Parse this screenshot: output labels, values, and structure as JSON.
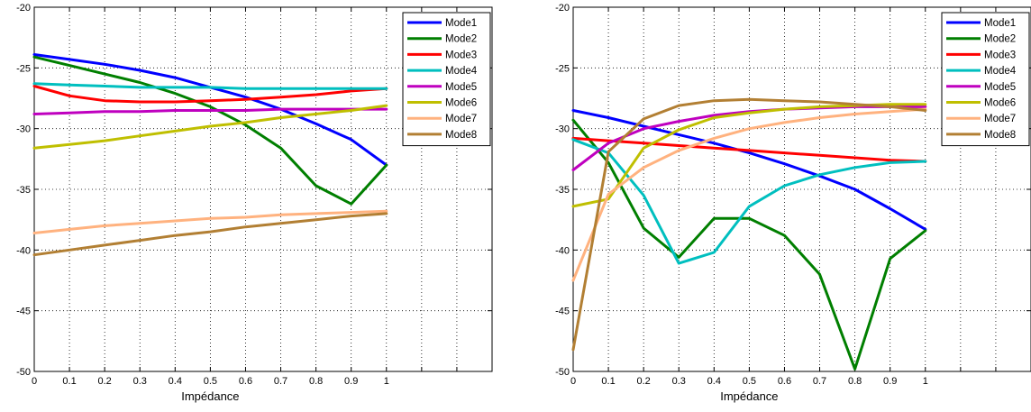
{
  "chart_data": [
    {
      "type": "line",
      "xlabel": "Impédance",
      "ylabel": "",
      "xlim": [
        0,
        1.3
      ],
      "ylim": [
        -50,
        -20
      ],
      "xticks": [
        "0",
        "0.1",
        "0.2",
        "0.3",
        "0.4",
        "0.5",
        "0.6",
        "0.7",
        "0.8",
        "0.9",
        "1"
      ],
      "yticks": [
        "-20",
        "-25",
        "-30",
        "-35",
        "-40",
        "-45",
        "-50"
      ],
      "grid": true,
      "legend_position": "top-right",
      "x": [
        0,
        0.1,
        0.2,
        0.3,
        0.4,
        0.5,
        0.6,
        0.7,
        0.8,
        0.9,
        1.0
      ],
      "series": [
        {
          "name": "Mode1",
          "color": "#0000ff",
          "values": [
            -23.9,
            -24.3,
            -24.7,
            -25.2,
            -25.8,
            -26.6,
            -27.4,
            -28.4,
            -29.6,
            -30.9,
            -33.0
          ]
        },
        {
          "name": "Mode2",
          "color": "#007f00",
          "values": [
            -24.1,
            -24.8,
            -25.5,
            -26.2,
            -27.1,
            -28.2,
            -29.7,
            -31.6,
            -34.7,
            -36.2,
            -33.0
          ]
        },
        {
          "name": "Mode3",
          "color": "#ff0000",
          "values": [
            -26.5,
            -27.3,
            -27.7,
            -27.8,
            -27.8,
            -27.7,
            -27.6,
            -27.4,
            -27.2,
            -26.9,
            -26.7
          ]
        },
        {
          "name": "Mode4",
          "color": "#00bfbf",
          "values": [
            -26.3,
            -26.4,
            -26.5,
            -26.6,
            -26.6,
            -26.6,
            -26.7,
            -26.7,
            -26.7,
            -26.7,
            -26.7
          ]
        },
        {
          "name": "Mode5",
          "color": "#bf00bf",
          "values": [
            -28.8,
            -28.7,
            -28.6,
            -28.6,
            -28.5,
            -28.5,
            -28.5,
            -28.4,
            -28.4,
            -28.4,
            -28.4
          ]
        },
        {
          "name": "Mode6",
          "color": "#bfbf00",
          "values": [
            -31.6,
            -31.3,
            -31.0,
            -30.6,
            -30.2,
            -29.8,
            -29.5,
            -29.1,
            -28.8,
            -28.5,
            -28.1
          ]
        },
        {
          "name": "Mode7",
          "color": "#ffb27f",
          "values": [
            -38.6,
            -38.3,
            -38.0,
            -37.8,
            -37.6,
            -37.4,
            -37.3,
            -37.1,
            -37.0,
            -36.9,
            -36.8
          ]
        },
        {
          "name": "Mode8",
          "color": "#b27f33",
          "values": [
            -40.4,
            -40.0,
            -39.6,
            -39.2,
            -38.8,
            -38.5,
            -38.1,
            -37.8,
            -37.5,
            -37.2,
            -37.0
          ]
        }
      ]
    },
    {
      "type": "line",
      "xlabel": "Impédance",
      "ylabel": "",
      "xlim": [
        0,
        1.3
      ],
      "ylim": [
        -50,
        -20
      ],
      "xticks": [
        "0",
        "0.1",
        "0.2",
        "0.3",
        "0.4",
        "0.5",
        "0.6",
        "0.7",
        "0.8",
        "0.9",
        "1"
      ],
      "yticks": [
        "-20",
        "-25",
        "-30",
        "-35",
        "-40",
        "-45",
        "-50"
      ],
      "grid": true,
      "legend_position": "top-right",
      "x": [
        0,
        0.1,
        0.2,
        0.3,
        0.4,
        0.5,
        0.6,
        0.7,
        0.8,
        0.9,
        1.0
      ],
      "series": [
        {
          "name": "Mode1",
          "color": "#0000ff",
          "values": [
            -28.5,
            -29.1,
            -29.8,
            -30.5,
            -31.2,
            -32.0,
            -32.9,
            -33.9,
            -35.0,
            -36.6,
            -38.3
          ]
        },
        {
          "name": "Mode2",
          "color": "#007f00",
          "values": [
            -29.3,
            -32.8,
            -38.2,
            -40.6,
            -37.4,
            -37.4,
            -38.8,
            -42.0,
            -49.8,
            -40.7,
            -38.4
          ]
        },
        {
          "name": "Mode3",
          "color": "#ff0000",
          "values": [
            -30.8,
            -31.0,
            -31.2,
            -31.4,
            -31.6,
            -31.8,
            -32.0,
            -32.2,
            -32.4,
            -32.6,
            -32.7
          ]
        },
        {
          "name": "Mode4",
          "color": "#00bfbf",
          "values": [
            -30.9,
            -32.0,
            -35.5,
            -41.1,
            -40.2,
            -36.4,
            -34.7,
            -33.8,
            -33.2,
            -32.8,
            -32.7
          ]
        },
        {
          "name": "Mode5",
          "color": "#bf00bf",
          "values": [
            -33.4,
            -31.2,
            -30.0,
            -29.4,
            -28.9,
            -28.6,
            -28.4,
            -28.3,
            -28.2,
            -28.2,
            -28.2
          ]
        },
        {
          "name": "Mode6",
          "color": "#bfbf00",
          "values": [
            -36.4,
            -35.8,
            -31.6,
            -30.1,
            -29.1,
            -28.7,
            -28.4,
            -28.2,
            -28.1,
            -28.0,
            -28.0
          ]
        },
        {
          "name": "Mode7",
          "color": "#ffb27f",
          "values": [
            -42.5,
            -35.4,
            -33.2,
            -31.8,
            -30.8,
            -30.0,
            -29.5,
            -29.1,
            -28.8,
            -28.6,
            -28.4
          ]
        },
        {
          "name": "Mode8",
          "color": "#b27f33",
          "values": [
            -48.2,
            -31.9,
            -29.2,
            -28.1,
            -27.7,
            -27.6,
            -27.7,
            -27.8,
            -28.0,
            -28.2,
            -28.5
          ]
        }
      ]
    }
  ]
}
